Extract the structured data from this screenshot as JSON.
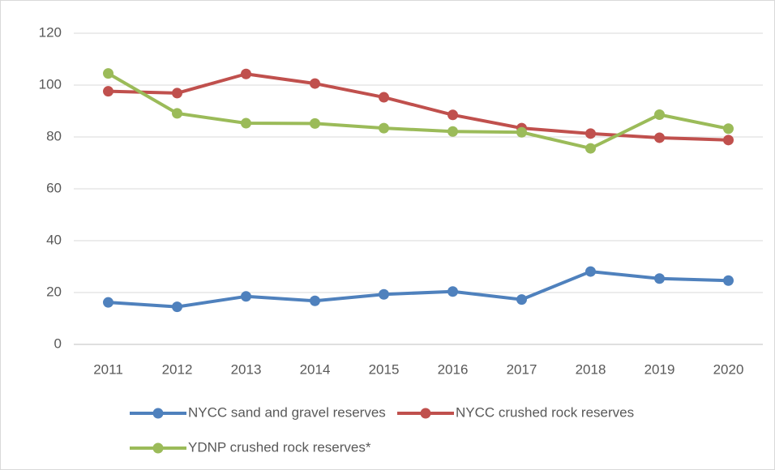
{
  "chart_data": {
    "type": "line",
    "categories": [
      "2011",
      "2012",
      "2013",
      "2014",
      "2015",
      "2016",
      "2017",
      "2018",
      "2019",
      "2020"
    ],
    "series": [
      {
        "name": "NYCC sand and gravel reserves",
        "color": "#4f81bd",
        "values": [
          16.2,
          14.5,
          18.5,
          16.8,
          19.3,
          20.4,
          17.3,
          28.1,
          25.4,
          24.6
        ]
      },
      {
        "name": "NYCC crushed rock reserves",
        "color": "#c0504d",
        "values": [
          97.6,
          96.9,
          104.3,
          100.6,
          95.3,
          88.5,
          83.4,
          81.3,
          79.7,
          78.8
        ]
      },
      {
        "name": "YDNP crushed rock reserves*",
        "color": "#9bbb59",
        "values": [
          104.5,
          89.1,
          85.3,
          85.2,
          83.4,
          82.1,
          81.8,
          75.6,
          88.6,
          83.2
        ]
      }
    ],
    "ylim": [
      0,
      120
    ],
    "yticks": [
      0,
      20,
      40,
      60,
      80,
      100,
      120
    ],
    "grid": true
  }
}
